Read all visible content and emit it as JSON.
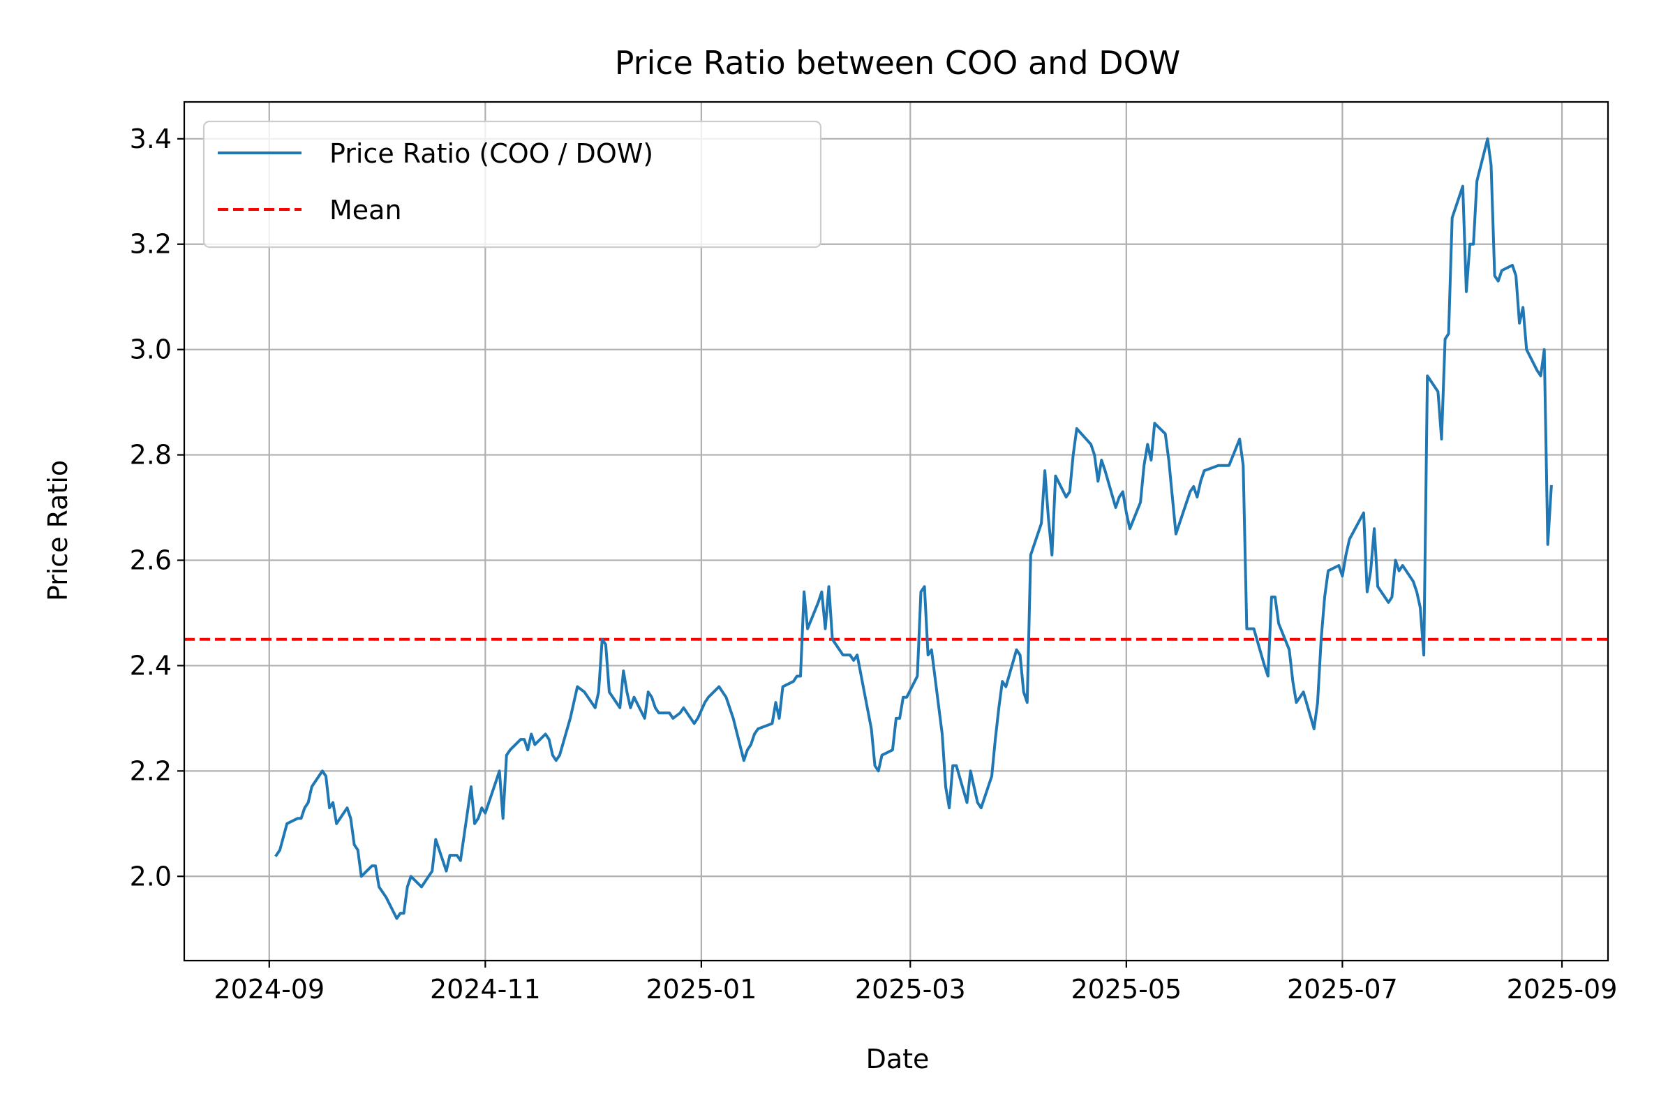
{
  "chart_data": {
    "type": "line",
    "title": "Price Ratio between COO and DOW",
    "xlabel": "Date",
    "ylabel": "Price Ratio",
    "xlim": [
      "2024-08-08",
      "2025-09-14"
    ],
    "ylim": [
      1.84,
      3.47
    ],
    "grid": true,
    "legend_position": "top-left",
    "x_ticks": [
      "2024-09-01",
      "2024-11-01",
      "2025-01-01",
      "2025-03-01",
      "2025-05-01",
      "2025-07-01",
      "2025-09-01"
    ],
    "x_tick_labels": [
      "2024-09",
      "2024-11",
      "2025-01",
      "2025-03",
      "2025-05",
      "2025-07",
      "2025-09"
    ],
    "y_ticks": [
      2.0,
      2.2,
      2.4,
      2.6,
      2.8,
      3.0,
      3.2,
      3.4
    ],
    "y_tick_labels": [
      "2.0",
      "2.2",
      "2.4",
      "2.6",
      "2.8",
      "3.0",
      "3.2",
      "3.4"
    ],
    "series": [
      {
        "name": "Price Ratio (COO / DOW)",
        "color": "#1f77b4",
        "style": "solid",
        "x": [
          "2024-09-03",
          "2024-09-04",
          "2024-09-06",
          "2024-09-09",
          "2024-09-10",
          "2024-09-11",
          "2024-09-12",
          "2024-09-13",
          "2024-09-16",
          "2024-09-17",
          "2024-09-18",
          "2024-09-19",
          "2024-09-20",
          "2024-09-23",
          "2024-09-24",
          "2024-09-25",
          "2024-09-26",
          "2024-09-27",
          "2024-09-30",
          "2024-10-01",
          "2024-10-02",
          "2024-10-04",
          "2024-10-07",
          "2024-10-08",
          "2024-10-09",
          "2024-10-10",
          "2024-10-11",
          "2024-10-14",
          "2024-10-15",
          "2024-10-16",
          "2024-10-17",
          "2024-10-18",
          "2024-10-21",
          "2024-10-22",
          "2024-10-23",
          "2024-10-24",
          "2024-10-25",
          "2024-10-28",
          "2024-10-29",
          "2024-10-30",
          "2024-10-31",
          "2024-11-01",
          "2024-11-04",
          "2024-11-05",
          "2024-11-06",
          "2024-11-07",
          "2024-11-08",
          "2024-11-11",
          "2024-11-12",
          "2024-11-13",
          "2024-11-14",
          "2024-11-15",
          "2024-11-18",
          "2024-11-19",
          "2024-11-20",
          "2024-11-21",
          "2024-11-22",
          "2024-11-25",
          "2024-11-26",
          "2024-11-27",
          "2024-11-29",
          "2024-12-02",
          "2024-12-03",
          "2024-12-04",
          "2024-12-05",
          "2024-12-06",
          "2024-12-09",
          "2024-12-10",
          "2024-12-11",
          "2024-12-12",
          "2024-12-13",
          "2024-12-16",
          "2024-12-17",
          "2024-12-18",
          "2024-12-19",
          "2024-12-20",
          "2024-12-23",
          "2024-12-24",
          "2024-12-26",
          "2024-12-27",
          "2024-12-30",
          "2024-12-31",
          "2025-01-02",
          "2025-01-03",
          "2025-01-06",
          "2025-01-07",
          "2025-01-08",
          "2025-01-10",
          "2025-01-13",
          "2025-01-14",
          "2025-01-15",
          "2025-01-16",
          "2025-01-17",
          "2025-01-21",
          "2025-01-22",
          "2025-01-23",
          "2025-01-24",
          "2025-01-27",
          "2025-01-28",
          "2025-01-29",
          "2025-01-30",
          "2025-01-31",
          "2025-02-03",
          "2025-02-04",
          "2025-02-05",
          "2025-02-06",
          "2025-02-07",
          "2025-02-10",
          "2025-02-11",
          "2025-02-12",
          "2025-02-13",
          "2025-02-14",
          "2025-02-18",
          "2025-02-19",
          "2025-02-20",
          "2025-02-21",
          "2025-02-24",
          "2025-02-25",
          "2025-02-26",
          "2025-02-27",
          "2025-02-28",
          "2025-03-03",
          "2025-03-04",
          "2025-03-05",
          "2025-03-06",
          "2025-03-07",
          "2025-03-10",
          "2025-03-11",
          "2025-03-12",
          "2025-03-13",
          "2025-03-14",
          "2025-03-17",
          "2025-03-18",
          "2025-03-19",
          "2025-03-20",
          "2025-03-21",
          "2025-03-24",
          "2025-03-25",
          "2025-03-26",
          "2025-03-27",
          "2025-03-28",
          "2025-03-31",
          "2025-04-01",
          "2025-04-02",
          "2025-04-03",
          "2025-04-04",
          "2025-04-07",
          "2025-04-08",
          "2025-04-09",
          "2025-04-10",
          "2025-04-11",
          "2025-04-14",
          "2025-04-15",
          "2025-04-16",
          "2025-04-17",
          "2025-04-21",
          "2025-04-22",
          "2025-04-23",
          "2025-04-24",
          "2025-04-25",
          "2025-04-28",
          "2025-04-29",
          "2025-04-30",
          "2025-05-01",
          "2025-05-02",
          "2025-05-05",
          "2025-05-06",
          "2025-05-07",
          "2025-05-08",
          "2025-05-09",
          "2025-05-12",
          "2025-05-13",
          "2025-05-14",
          "2025-05-15",
          "2025-05-16",
          "2025-05-19",
          "2025-05-20",
          "2025-05-21",
          "2025-05-22",
          "2025-05-23",
          "2025-05-27",
          "2025-05-28",
          "2025-05-29",
          "2025-05-30",
          "2025-06-02",
          "2025-06-03",
          "2025-06-04",
          "2025-06-05",
          "2025-06-06",
          "2025-06-09",
          "2025-06-10",
          "2025-06-11",
          "2025-06-12",
          "2025-06-13",
          "2025-06-16",
          "2025-06-17",
          "2025-06-18",
          "2025-06-20",
          "2025-06-23",
          "2025-06-24",
          "2025-06-25",
          "2025-06-26",
          "2025-06-27",
          "2025-06-30",
          "2025-07-01",
          "2025-07-02",
          "2025-07-03",
          "2025-07-07",
          "2025-07-08",
          "2025-07-09",
          "2025-07-10",
          "2025-07-11",
          "2025-07-14",
          "2025-07-15",
          "2025-07-16",
          "2025-07-17",
          "2025-07-18",
          "2025-07-21",
          "2025-07-22",
          "2025-07-23",
          "2025-07-24",
          "2025-07-25",
          "2025-07-28",
          "2025-07-29",
          "2025-07-30",
          "2025-07-31",
          "2025-08-01",
          "2025-08-04",
          "2025-08-05",
          "2025-08-06",
          "2025-08-07",
          "2025-08-08",
          "2025-08-11",
          "2025-08-12",
          "2025-08-13",
          "2025-08-14",
          "2025-08-15",
          "2025-08-18",
          "2025-08-19",
          "2025-08-20",
          "2025-08-21",
          "2025-08-22",
          "2025-08-25",
          "2025-08-26",
          "2025-08-27",
          "2025-08-28",
          "2025-08-29"
        ],
        "y": [
          2.04,
          2.05,
          2.1,
          2.11,
          2.11,
          2.13,
          2.14,
          2.17,
          2.2,
          2.19,
          2.13,
          2.14,
          2.1,
          2.13,
          2.11,
          2.06,
          2.05,
          2.0,
          2.02,
          2.02,
          1.98,
          1.96,
          1.92,
          1.93,
          1.93,
          1.98,
          2.0,
          1.98,
          1.99,
          2.0,
          2.01,
          2.07,
          2.01,
          2.04,
          2.04,
          2.04,
          2.03,
          2.17,
          2.1,
          2.11,
          2.13,
          2.12,
          2.18,
          2.2,
          2.11,
          2.23,
          2.24,
          2.26,
          2.26,
          2.24,
          2.27,
          2.25,
          2.27,
          2.26,
          2.23,
          2.22,
          2.23,
          2.3,
          2.33,
          2.36,
          2.35,
          2.32,
          2.35,
          2.45,
          2.44,
          2.35,
          2.32,
          2.39,
          2.35,
          2.32,
          2.34,
          2.3,
          2.35,
          2.34,
          2.32,
          2.31,
          2.31,
          2.3,
          2.31,
          2.32,
          2.29,
          2.3,
          2.33,
          2.34,
          2.36,
          2.35,
          2.34,
          2.3,
          2.22,
          2.24,
          2.25,
          2.27,
          2.28,
          2.29,
          2.33,
          2.3,
          2.36,
          2.37,
          2.38,
          2.38,
          2.54,
          2.47,
          2.52,
          2.54,
          2.47,
          2.55,
          2.45,
          2.42,
          2.42,
          2.42,
          2.41,
          2.42,
          2.28,
          2.21,
          2.2,
          2.23,
          2.24,
          2.3,
          2.3,
          2.34,
          2.34,
          2.38,
          2.54,
          2.55,
          2.42,
          2.43,
          2.27,
          2.17,
          2.13,
          2.21,
          2.21,
          2.14,
          2.2,
          2.17,
          2.14,
          2.13,
          2.19,
          2.26,
          2.32,
          2.37,
          2.36,
          2.43,
          2.42,
          2.35,
          2.33,
          2.61,
          2.67,
          2.77,
          2.68,
          2.61,
          2.76,
          2.72,
          2.73,
          2.8,
          2.85,
          2.82,
          2.8,
          2.75,
          2.79,
          2.77,
          2.7,
          2.72,
          2.73,
          2.69,
          2.66,
          2.71,
          2.78,
          2.82,
          2.79,
          2.86,
          2.84,
          2.79,
          2.72,
          2.65,
          2.67,
          2.73,
          2.74,
          2.72,
          2.75,
          2.77,
          2.78,
          2.78,
          2.78,
          2.78,
          2.83,
          2.78,
          2.47,
          2.47,
          2.47,
          2.4,
          2.38,
          2.53,
          2.53,
          2.48,
          2.43,
          2.37,
          2.33,
          2.35,
          2.28,
          2.33,
          2.45,
          2.53,
          2.58,
          2.59,
          2.57,
          2.61,
          2.64,
          2.69,
          2.54,
          2.58,
          2.66,
          2.55,
          2.52,
          2.53,
          2.6,
          2.58,
          2.59,
          2.56,
          2.54,
          2.51,
          2.42,
          2.95,
          2.92,
          2.83,
          3.02,
          3.03,
          3.25,
          3.31,
          3.11,
          3.2,
          3.2,
          3.32,
          3.4,
          3.35,
          3.14,
          3.13,
          3.15,
          3.16,
          3.14,
          3.05,
          3.08,
          3.0,
          2.96,
          2.95,
          3.0,
          2.63,
          2.74
        ]
      },
      {
        "name": "Mean",
        "color": "#ff0000",
        "style": "dashed",
        "y_const": 2.45
      }
    ]
  }
}
